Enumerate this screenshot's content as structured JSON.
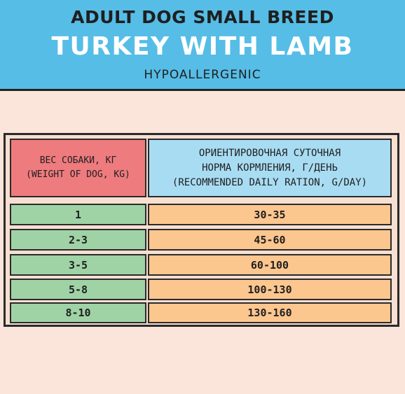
{
  "header": {
    "brand_line": "ADULT DOG SMALL BREED",
    "product_line": "TURKEY WITH LAMB",
    "subtitle": "HYPOALLERGENIC"
  },
  "table": {
    "col1_header_line1": "ВЕС СОБАКИ, КГ",
    "col1_header_line2": "(WEIGHT OF DOG, KG)",
    "col2_header_line1": "ОРИЕНТИРОВОЧНАЯ СУТОЧНАЯ",
    "col2_header_line2": "НОРМА КОРМЛЕНИЯ, Г/ДЕНЬ",
    "col2_header_line3": "(RECOMMENDED DAILY RATION, G/DAY)",
    "rows": [
      {
        "weight": "1",
        "ration": "30-35"
      },
      {
        "weight": "2-3",
        "ration": "45-60"
      },
      {
        "weight": "3-5",
        "ration": "60-100"
      },
      {
        "weight": "5-8",
        "ration": "100-130"
      },
      {
        "weight": "8-10",
        "ration": "130-160"
      }
    ]
  },
  "colors": {
    "header_bg": "#56bde6",
    "page_bg": "#fbe4da",
    "weight_header": "#ee7b7e",
    "ration_header": "#a8dcf3",
    "weight_cell": "#9fd3a6",
    "ration_cell": "#fcc68f"
  }
}
